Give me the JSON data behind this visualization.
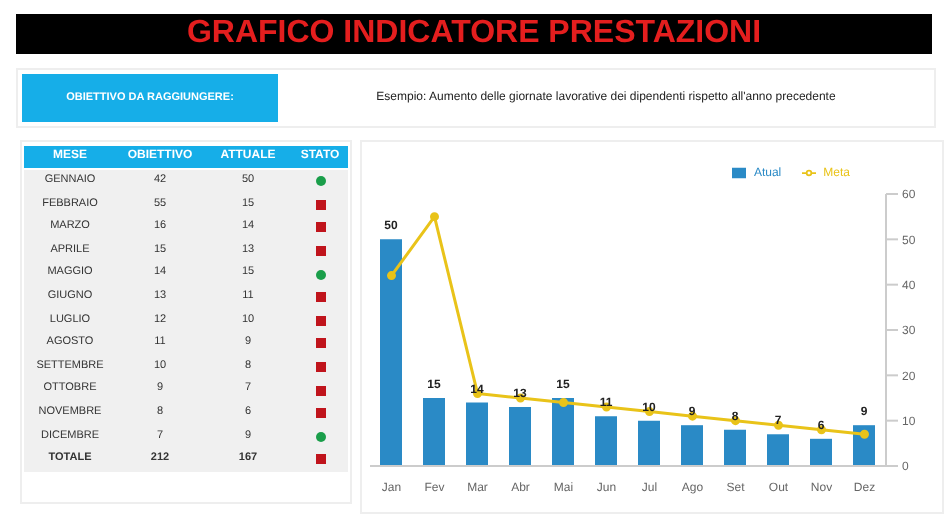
{
  "chart_data": [
    {
      "type": "other",
      "title": "GRAFICO INDICATORE PRESTAZIONI",
      "annotations": [
        "OBIETTIVO DA RAGGIUNGERE:",
        "Esempio: Aumento delle giornate lavorative dei dipendenti rispetto all'anno precedente"
      ]
    },
    {
      "type": "other",
      "xlabel": "MESE",
      "annotations": [
        "STATO"
      ],
      "data_labels": true,
      "categories": [
        "GENNAIO",
        "FEBBRAIO",
        "MARZO",
        "APRILE",
        "MAGGIO",
        "GIUGNO",
        "LUGLIO",
        "AGOSTO",
        "SETTEMBRE",
        "OTTOBRE",
        "NOVEMBRE",
        "DICEMBRE",
        "TOTALE"
      ],
      "series": [
        {
          "name": "OBIETTIVO",
          "values": [
            42,
            55,
            16,
            15,
            14,
            13,
            12,
            11,
            10,
            9,
            8,
            7,
            212
          ]
        },
        {
          "name": "ATTUALE",
          "values": [
            50,
            15,
            14,
            13,
            15,
            11,
            10,
            9,
            8,
            7,
            6,
            9,
            167
          ]
        }
      ]
    },
    {
      "type": "bar",
      "categories": [
        "Jan",
        "Fev",
        "Mar",
        "Abr",
        "Mai",
        "Jun",
        "Jul",
        "Ago",
        "Set",
        "Out",
        "Nov",
        "Dez"
      ],
      "series": [
        {
          "name": "Atual",
          "type": "bar",
          "color": "#2a8ac6",
          "values": [
            50,
            15,
            14,
            13,
            15,
            11,
            10,
            9,
            8,
            7,
            6,
            9
          ],
          "value_labels": [
            "50",
            "15",
            "14",
            "13",
            "15",
            "11",
            "10",
            "9",
            "8",
            "7",
            "6",
            "9"
          ]
        },
        {
          "name": "Meta",
          "type": "line",
          "color": "#e9c319",
          "values": [
            42,
            55,
            16,
            15,
            14,
            13,
            12,
            11,
            10,
            9,
            8,
            7
          ]
        }
      ],
      "ylim": [
        0,
        60
      ],
      "yticks": [
        0,
        10,
        20,
        30,
        40,
        50,
        60
      ],
      "legend": "top right",
      "marker": "circle"
    }
  ]
}
